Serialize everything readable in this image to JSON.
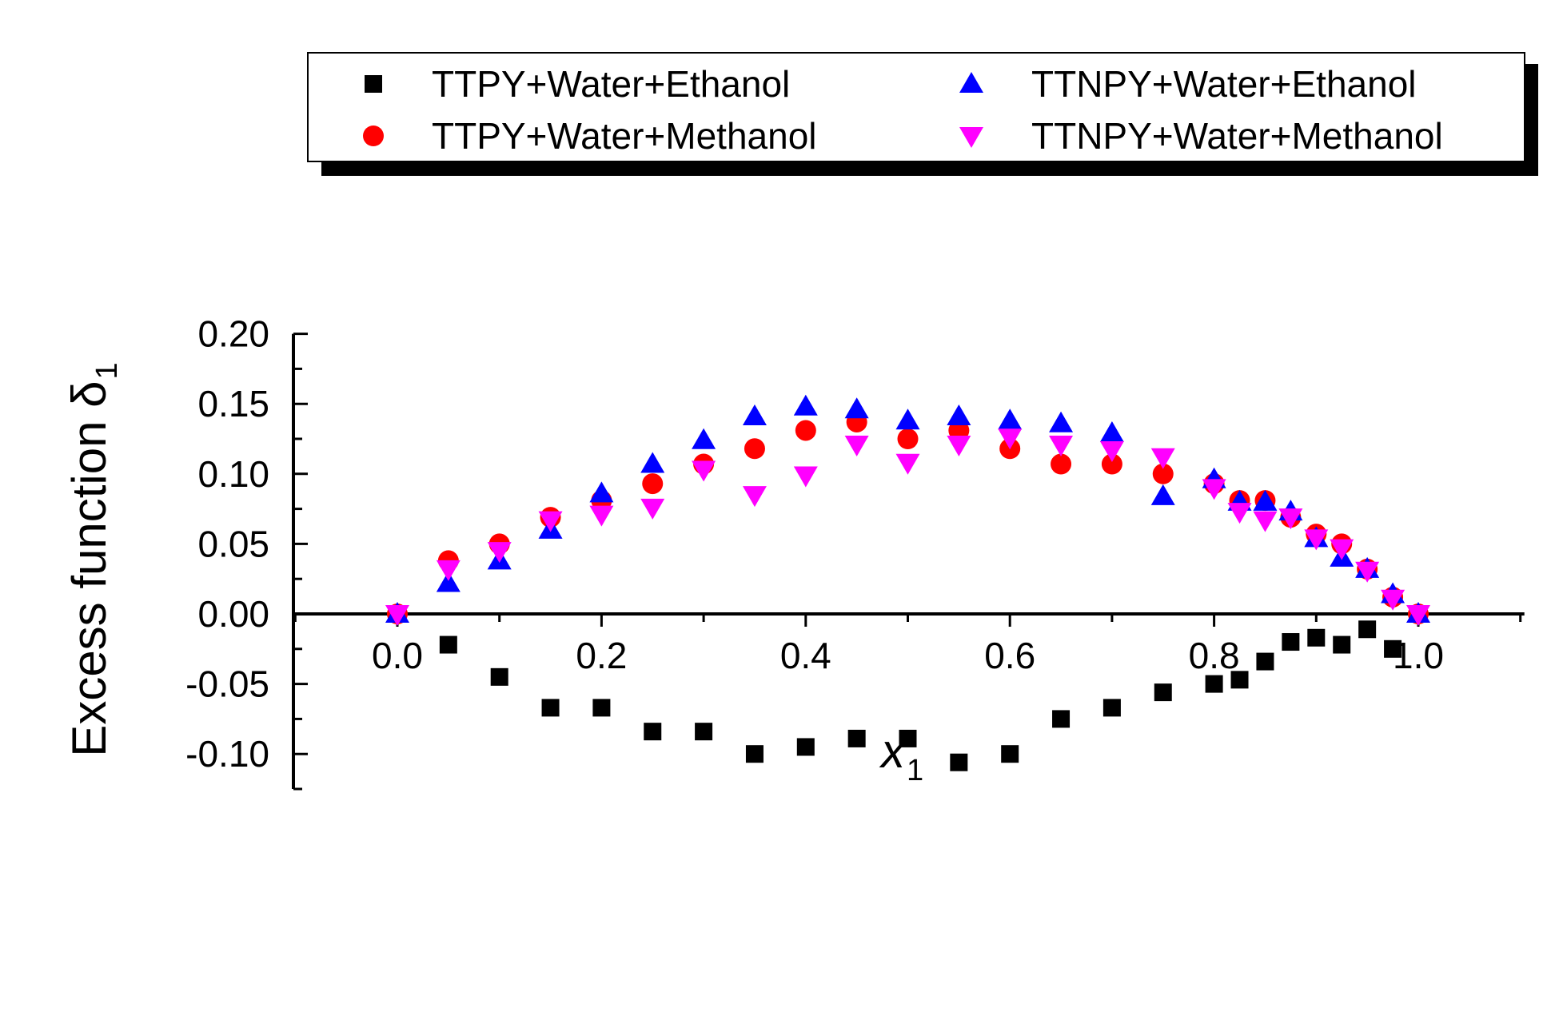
{
  "chart_data": {
    "type": "scatter",
    "title": "",
    "xlabel": "x",
    "xlabel_sub": "1",
    "ylabel": "Excess function δ",
    "ylabel_sub": "1",
    "xlim": [
      -0.1,
      1.1
    ],
    "ylim": [
      -0.125,
      0.2
    ],
    "x_ticks": [
      0.0,
      0.2,
      0.4,
      0.6,
      0.8,
      1.0
    ],
    "x_tick_labels": [
      "0.0",
      "0.2",
      "0.4",
      "0.6",
      "0.8",
      "1.0"
    ],
    "y_ticks": [
      -0.1,
      -0.05,
      0.0,
      0.05,
      0.1,
      0.15,
      0.2
    ],
    "y_tick_labels": [
      "-0.10",
      "-0.05",
      "0.00",
      "0.05",
      "0.10",
      "0.15",
      "0.20"
    ],
    "grid": false,
    "legend_position": "top",
    "series": [
      {
        "name": "TTPY+Water+Ethanol",
        "marker": "square",
        "color": "#000000",
        "points": [
          [
            0.0,
            0.0
          ],
          [
            0.05,
            -0.022
          ],
          [
            0.1,
            -0.045
          ],
          [
            0.15,
            -0.067
          ],
          [
            0.2,
            -0.067
          ],
          [
            0.25,
            -0.084
          ],
          [
            0.3,
            -0.084
          ],
          [
            0.35,
            -0.1
          ],
          [
            0.4,
            -0.095
          ],
          [
            0.45,
            -0.089
          ],
          [
            0.5,
            -0.089
          ],
          [
            0.55,
            -0.106
          ],
          [
            0.6,
            -0.1
          ],
          [
            0.65,
            -0.075
          ],
          [
            0.7,
            -0.067
          ],
          [
            0.75,
            -0.056
          ],
          [
            0.8,
            -0.05
          ],
          [
            0.825,
            -0.047
          ],
          [
            0.85,
            -0.034
          ],
          [
            0.875,
            -0.02
          ],
          [
            0.9,
            -0.017
          ],
          [
            0.925,
            -0.022
          ],
          [
            0.95,
            -0.011
          ],
          [
            0.975,
            -0.025
          ],
          [
            1.0,
            0.0
          ]
        ]
      },
      {
        "name": "TTPY+Water+Methanol",
        "marker": "circle",
        "color": "#ff0000",
        "points": [
          [
            0.0,
            0.0
          ],
          [
            0.05,
            0.038
          ],
          [
            0.1,
            0.05
          ],
          [
            0.15,
            0.069
          ],
          [
            0.2,
            0.081
          ],
          [
            0.25,
            0.093
          ],
          [
            0.3,
            0.107
          ],
          [
            0.35,
            0.118
          ],
          [
            0.4,
            0.131
          ],
          [
            0.45,
            0.137
          ],
          [
            0.5,
            0.125
          ],
          [
            0.55,
            0.131
          ],
          [
            0.6,
            0.118
          ],
          [
            0.65,
            0.107
          ],
          [
            0.7,
            0.107
          ],
          [
            0.75,
            0.1
          ],
          [
            0.8,
            0.093
          ],
          [
            0.825,
            0.081
          ],
          [
            0.85,
            0.081
          ],
          [
            0.875,
            0.069
          ],
          [
            0.9,
            0.057
          ],
          [
            0.925,
            0.05
          ],
          [
            0.95,
            0.032
          ],
          [
            0.975,
            0.012
          ],
          [
            1.0,
            0.0
          ]
        ]
      },
      {
        "name": "TTNPY+Water+Ethanol",
        "marker": "triangle-up",
        "color": "#0000ff",
        "points": [
          [
            0.0,
            0.0
          ],
          [
            0.05,
            0.022
          ],
          [
            0.1,
            0.038
          ],
          [
            0.15,
            0.06
          ],
          [
            0.2,
            0.086
          ],
          [
            0.25,
            0.107
          ],
          [
            0.3,
            0.124
          ],
          [
            0.35,
            0.141
          ],
          [
            0.4,
            0.148
          ],
          [
            0.45,
            0.146
          ],
          [
            0.5,
            0.138
          ],
          [
            0.55,
            0.141
          ],
          [
            0.6,
            0.138
          ],
          [
            0.65,
            0.136
          ],
          [
            0.7,
            0.129
          ],
          [
            0.75,
            0.084
          ],
          [
            0.8,
            0.096
          ],
          [
            0.825,
            0.08
          ],
          [
            0.85,
            0.08
          ],
          [
            0.875,
            0.073
          ],
          [
            0.9,
            0.054
          ],
          [
            0.925,
            0.04
          ],
          [
            0.95,
            0.032
          ],
          [
            0.975,
            0.014
          ],
          [
            1.0,
            0.0
          ]
        ]
      },
      {
        "name": "TTNPY+Water+Methanol",
        "marker": "triangle-down",
        "color": "#ff00ff",
        "points": [
          [
            0.0,
            0.0
          ],
          [
            0.05,
            0.032
          ],
          [
            0.1,
            0.045
          ],
          [
            0.15,
            0.067
          ],
          [
            0.2,
            0.071
          ],
          [
            0.25,
            0.076
          ],
          [
            0.3,
            0.103
          ],
          [
            0.35,
            0.085
          ],
          [
            0.4,
            0.099
          ],
          [
            0.45,
            0.121
          ],
          [
            0.5,
            0.108
          ],
          [
            0.55,
            0.121
          ],
          [
            0.6,
            0.126
          ],
          [
            0.65,
            0.121
          ],
          [
            0.7,
            0.117
          ],
          [
            0.75,
            0.112
          ],
          [
            0.8,
            0.09
          ],
          [
            0.825,
            0.073
          ],
          [
            0.85,
            0.067
          ],
          [
            0.875,
            0.069
          ],
          [
            0.9,
            0.054
          ],
          [
            0.925,
            0.047
          ],
          [
            0.95,
            0.031
          ],
          [
            0.975,
            0.011
          ],
          [
            1.0,
            0.0
          ]
        ]
      }
    ]
  }
}
